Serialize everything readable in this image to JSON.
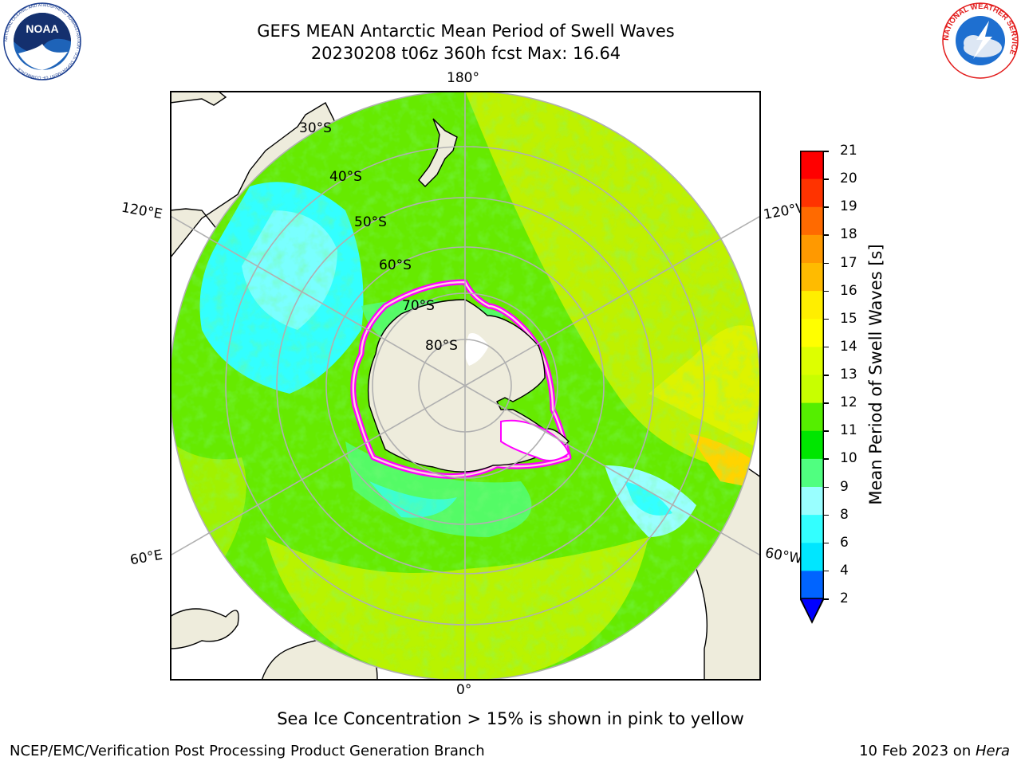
{
  "header": {
    "title_line1": "GEFS MEAN Antarctic Mean Period of Swell Waves",
    "title_line2": "20230208 t06z 360h fcst   Max: 16.64"
  },
  "logos": {
    "left_name": "NOAA",
    "left_ring_text": "NATIONAL OCEANIC AND ATMOSPHERIC ADMINISTRATION · U.S. DEPARTMENT OF COMMERCE",
    "right_ring_text": "NATIONAL WEATHER SERVICE"
  },
  "map": {
    "projection": "south-polar-stereographic",
    "longitude_labels": {
      "top": "180°",
      "bottom": "0°",
      "left_upper": "120°E",
      "right_upper": "120°W",
      "left_lower": "60°E",
      "right_lower": "60°W"
    },
    "latitude_labels": [
      "30°S",
      "40°S",
      "50°S",
      "60°S",
      "70°S",
      "80°S"
    ],
    "colors": {
      "land": "#eeecdc",
      "gridline": "#b0b0b0",
      "ice_edge": "#ff00ff"
    }
  },
  "colorbar": {
    "label": "Mean Period of Swell Waves [s]",
    "ticks": [
      "2",
      "4",
      "6",
      "8",
      "9",
      "10",
      "11",
      "12",
      "13",
      "14",
      "15",
      "16",
      "17",
      "18",
      "19",
      "20",
      "21"
    ],
    "colors": [
      "#0064ff",
      "#00e6ff",
      "#33ffff",
      "#99ffff",
      "#50ff80",
      "#00e600",
      "#55ee00",
      "#c8ff00",
      "#ddff00",
      "#ffff00",
      "#ffee00",
      "#ffbb00",
      "#ff9900",
      "#ff6a00",
      "#ff3300",
      "#ff0000"
    ],
    "under_color": "#0000ff"
  },
  "note": "Sea Ice Concentration > 15% is shown in pink to yellow",
  "footer": {
    "left": "NCEP/EMC/Verification Post Processing Product Generation Branch",
    "right_date": "10 Feb 2023 on ",
    "right_host": "Hera"
  }
}
